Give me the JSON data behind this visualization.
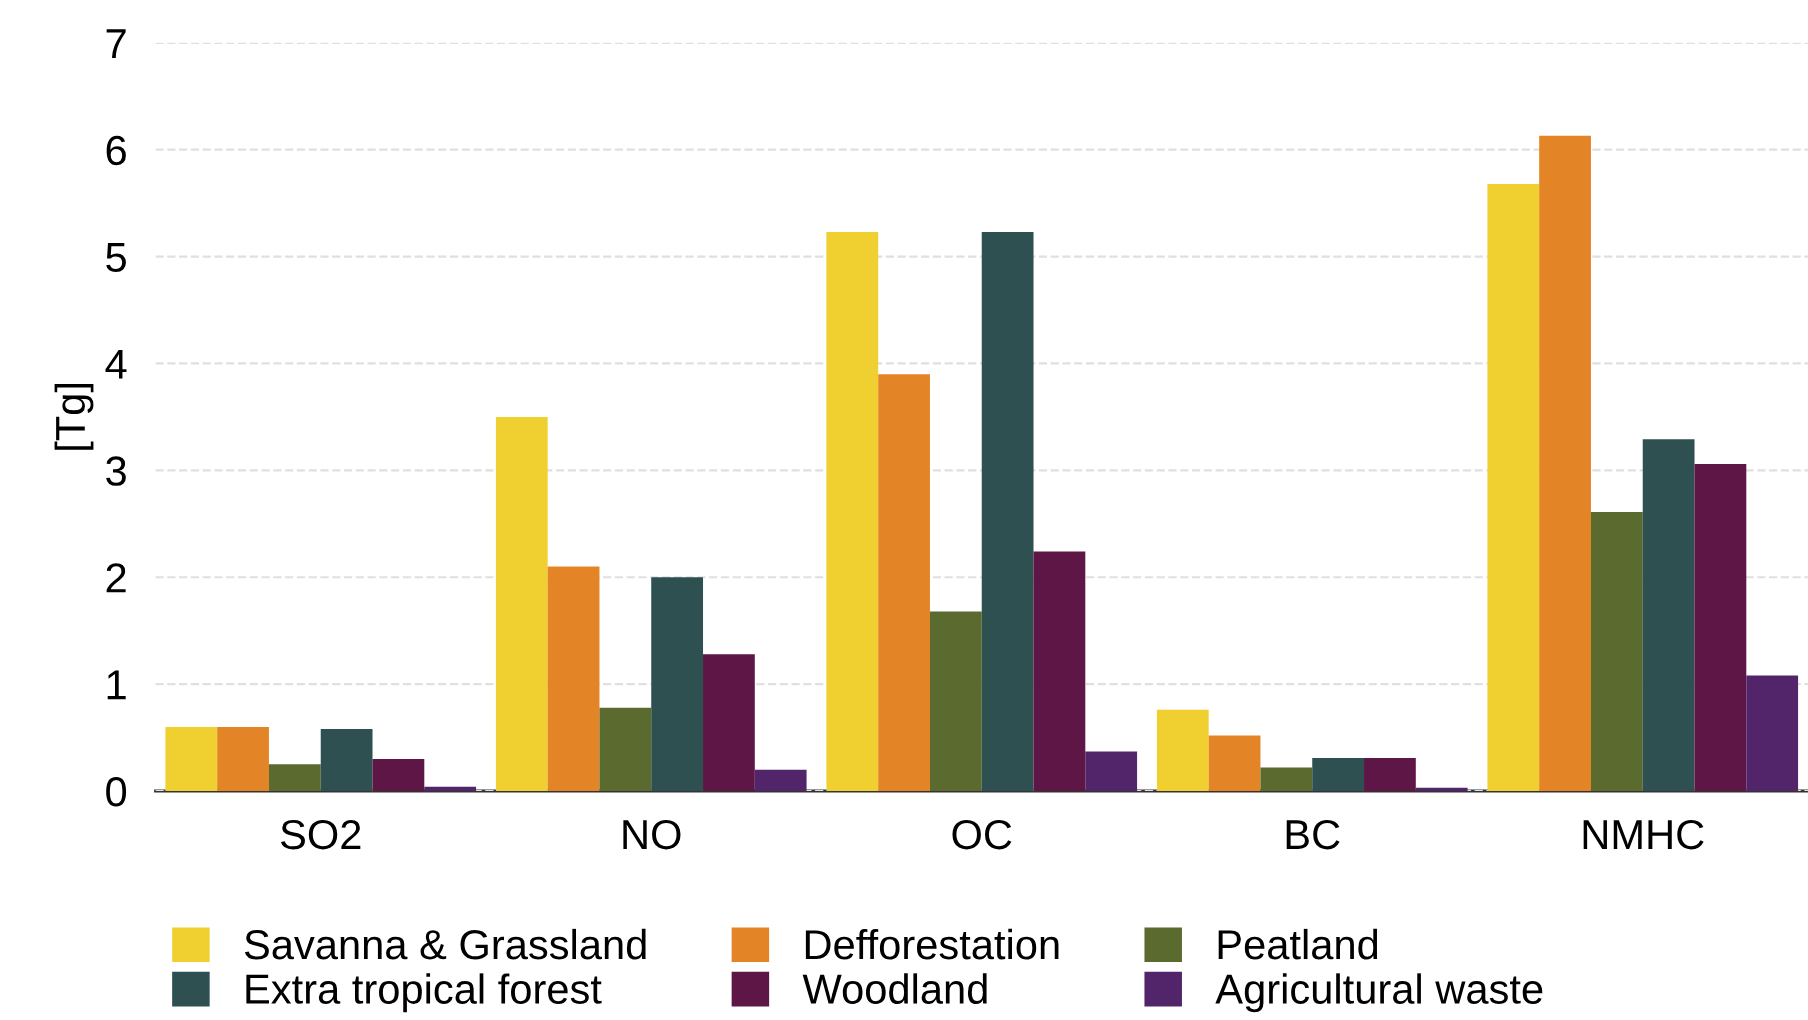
{
  "chart_data": {
    "type": "bar",
    "ylabel": "[Tg]",
    "categories": [
      "SO2",
      "NO",
      "OC",
      "BC",
      "NMHC"
    ],
    "series": [
      {
        "name": "Savanna & Grassland",
        "color": "#f0d030",
        "values": [
          0.6,
          3.5,
          5.23,
          0.76,
          5.68
        ]
      },
      {
        "name": "Defforestation",
        "color": "#e38526",
        "values": [
          0.6,
          2.1,
          3.9,
          0.52,
          6.13
        ]
      },
      {
        "name": "Peatland",
        "color": "#5b6b30",
        "values": [
          0.25,
          0.78,
          1.68,
          0.22,
          2.61
        ]
      },
      {
        "name": "Extra tropical forest",
        "color": "#2e5050",
        "values": [
          0.58,
          2.0,
          5.23,
          0.31,
          3.29
        ]
      },
      {
        "name": "Woodland",
        "color": "#5e1647",
        "values": [
          0.3,
          1.28,
          2.24,
          0.31,
          3.06
        ]
      },
      {
        "name": "Agricultural waste",
        "color": "#52246a",
        "values": [
          0.04,
          0.2,
          0.37,
          0.03,
          1.08
        ]
      }
    ],
    "ylim": [
      0,
      7
    ],
    "yticks": [
      0,
      1,
      2,
      3,
      4,
      5,
      6,
      7
    ],
    "grid": "y",
    "legend": "bottom"
  }
}
